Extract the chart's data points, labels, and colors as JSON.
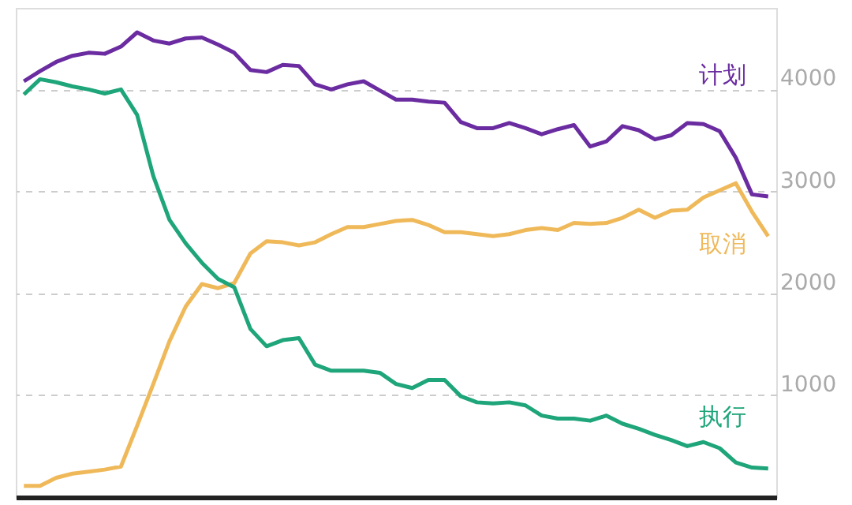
{
  "chart_data": {
    "type": "line",
    "categories": [
      null,
      null,
      null,
      null,
      null,
      null,
      null,
      null,
      null,
      null,
      null,
      null,
      null,
      null,
      null,
      null,
      null,
      null,
      null,
      null,
      null,
      null,
      null,
      null,
      null,
      null,
      null,
      null,
      null,
      null,
      null,
      null,
      null,
      null,
      null,
      null,
      null,
      null,
      null,
      null,
      null,
      null,
      null,
      null,
      null,
      null,
      null
    ],
    "series": [
      {
        "name": "计划",
        "color": "#6a2ca0",
        "values": [
          4080,
          4180,
          4270,
          4330,
          4360,
          4350,
          4420,
          4560,
          4480,
          4450,
          4500,
          4510,
          4440,
          4360,
          4190,
          4170,
          4240,
          4230,
          4050,
          4000,
          4050,
          4080,
          3990,
          3900,
          3900,
          3880,
          3870,
          3680,
          3620,
          3620,
          3670,
          3620,
          3560,
          3610,
          3650,
          3440,
          3490,
          3640,
          3600,
          3510,
          3550,
          3670,
          3660,
          3590,
          3330,
          2970,
          2950
        ]
      },
      {
        "name": "取消",
        "color": "#efb95a",
        "values": [
          110,
          110,
          190,
          230,
          250,
          270,
          300,
          700,
          1110,
          1530,
          1870,
          2090,
          2050,
          2100,
          2390,
          2510,
          2500,
          2470,
          2500,
          2580,
          2650,
          2650,
          2680,
          2710,
          2720,
          2670,
          2600,
          2600,
          2580,
          2560,
          2580,
          2620,
          2640,
          2620,
          2690,
          2680,
          2690,
          2740,
          2820,
          2740,
          2810,
          2820,
          2940,
          3010,
          3080,
          2800,
          2560
        ]
      },
      {
        "name": "执行",
        "color": "#1fa57a",
        "values": [
          3950,
          4100,
          4070,
          4030,
          4000,
          3960,
          4000,
          3750,
          3150,
          2720,
          2490,
          2300,
          2140,
          2060,
          1650,
          1480,
          1540,
          1560,
          1300,
          1240,
          1240,
          1240,
          1220,
          1110,
          1070,
          1150,
          1150,
          990,
          930,
          920,
          930,
          900,
          800,
          770,
          770,
          750,
          800,
          720,
          670,
          610,
          560,
          500,
          540,
          480,
          340,
          290,
          280
        ]
      }
    ],
    "ylim": [
      0,
      4800
    ],
    "yticks": [
      1000,
      2000,
      3000,
      4000
    ],
    "grid": "y",
    "tick_labels": "y",
    "line_style": "solid",
    "marker": "none",
    "legend": false
  }
}
